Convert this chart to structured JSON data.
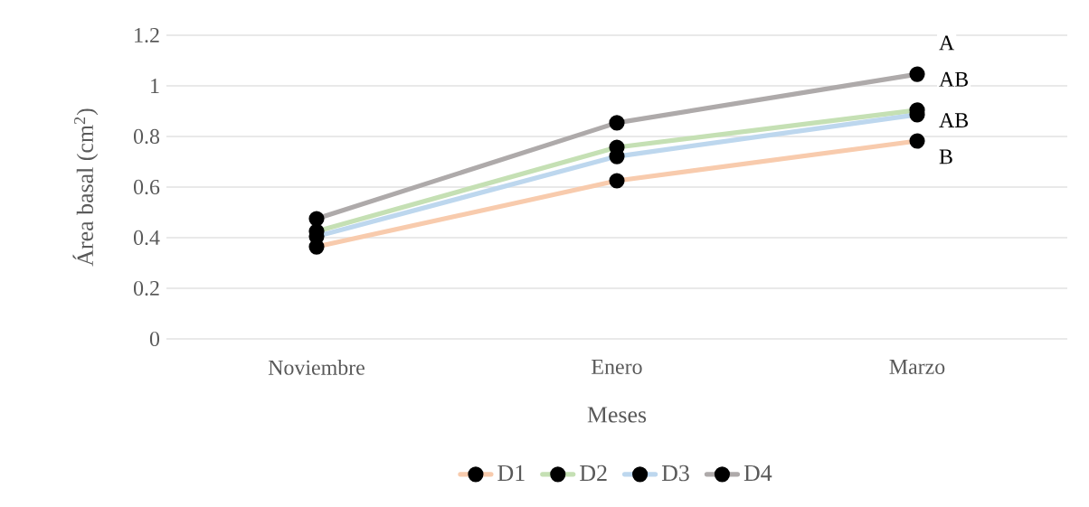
{
  "chart_data": {
    "type": "line",
    "xlabel": "Meses",
    "ylabel": "Área basal (cm$^{2}$)",
    "categories": [
      "Noviembre",
      "Enero",
      "Marzo"
    ],
    "series": [
      {
        "name": "D1",
        "color": "#f8cbad",
        "values": [
          0.364,
          0.625,
          0.782
        ]
      },
      {
        "name": "D2",
        "color": "#c5e0b4",
        "values": [
          0.425,
          0.757,
          0.904
        ]
      },
      {
        "name": "D3",
        "color": "#bdd7ee",
        "values": [
          0.405,
          0.721,
          0.886
        ]
      },
      {
        "name": "D4",
        "color": "#aeaaaa",
        "values": [
          0.475,
          0.854,
          1.046
        ]
      }
    ],
    "ylim": [
      0,
      1.2
    ],
    "yticks": [
      0,
      0.2,
      0.4,
      0.6,
      0.8,
      1,
      1.2
    ],
    "grid": "y",
    "legend": "bottom",
    "marker": "circle",
    "line_style": "solid",
    "annotations": [
      "A",
      "AB",
      "AB",
      "B"
    ]
  }
}
